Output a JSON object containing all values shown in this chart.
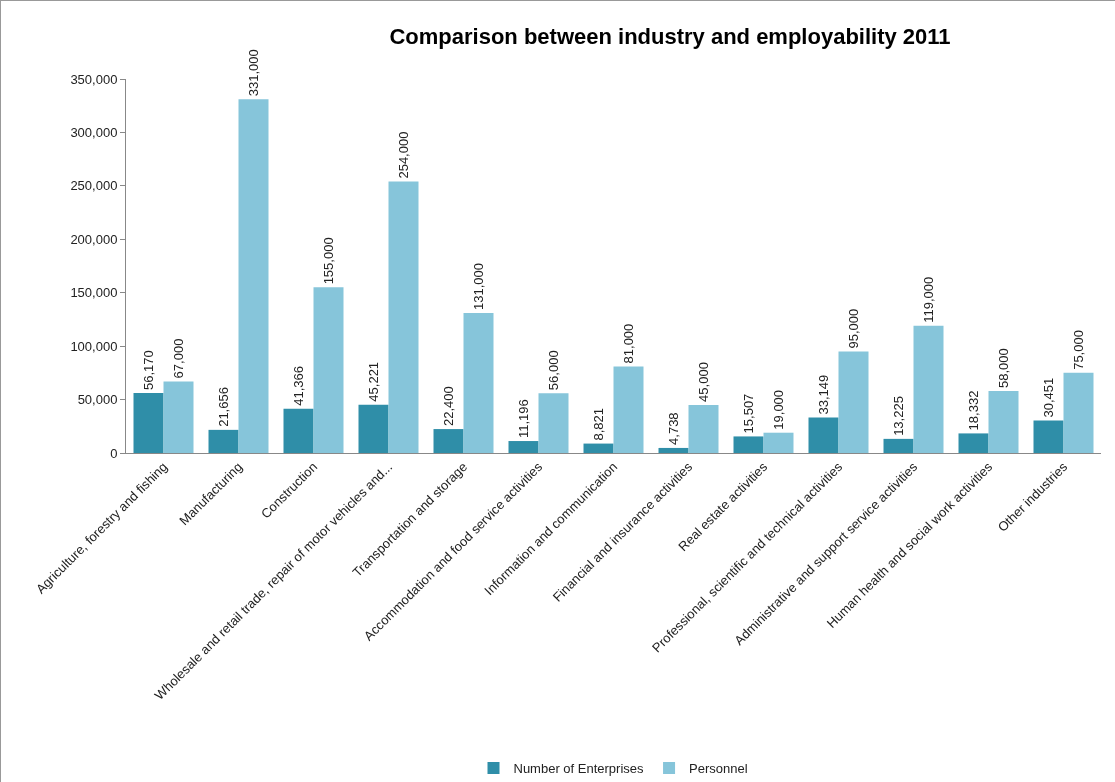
{
  "chart_data": {
    "type": "bar",
    "title": "Comparison between industry and employability 2011",
    "categories": [
      "Agriculture, forestry and fishing",
      "Manufacturing",
      "Construction",
      "Wholesale and retail trade, repair of motor vehicles and...",
      "Transportation and storage",
      "Accommodation and food service activities",
      "Information and communication",
      "Financial and insurance activities",
      "Real estate activities",
      "Professional, scientific and technical activities",
      "Administrative and support service activities",
      "Human health and social work activities",
      "Other industries"
    ],
    "series": [
      {
        "name": "Number of Enterprises",
        "color": "#2f8ea8",
        "values": [
          56170,
          21656,
          41366,
          45221,
          22400,
          11196,
          8821,
          4738,
          15507,
          33149,
          13225,
          18332,
          30451
        ],
        "value_labels": [
          "56,170",
          "21,656",
          "41,366",
          "45,221",
          "22,400",
          "11,196",
          "8,821",
          "4,738",
          "15,507",
          "33,149",
          "13,225",
          "18,332",
          "30,451"
        ]
      },
      {
        "name": "Personnel",
        "color": "#86c5da",
        "values": [
          67000,
          331000,
          155000,
          254000,
          131000,
          56000,
          81000,
          45000,
          19000,
          95000,
          119000,
          58000,
          75000
        ],
        "value_labels": [
          "67,000",
          "331,000",
          "155,000",
          "254,000",
          "131,000",
          "56,000",
          "81,000",
          "45,000",
          "19,000",
          "95,000",
          "119,000",
          "58,000",
          "75,000"
        ]
      }
    ],
    "ylim": [
      0,
      350000
    ],
    "yticks": [
      {
        "value": 0,
        "label": "0"
      },
      {
        "value": 50000,
        "label": "50,000"
      },
      {
        "value": 100000,
        "label": "100,000"
      },
      {
        "value": 150000,
        "label": "150,000"
      },
      {
        "value": 200000,
        "label": "200,000"
      },
      {
        "value": 250000,
        "label": "250,000"
      },
      {
        "value": 300000,
        "label": "300,000"
      },
      {
        "value": 350000,
        "label": "350,000"
      }
    ],
    "grid": false,
    "legend": "bottom"
  }
}
